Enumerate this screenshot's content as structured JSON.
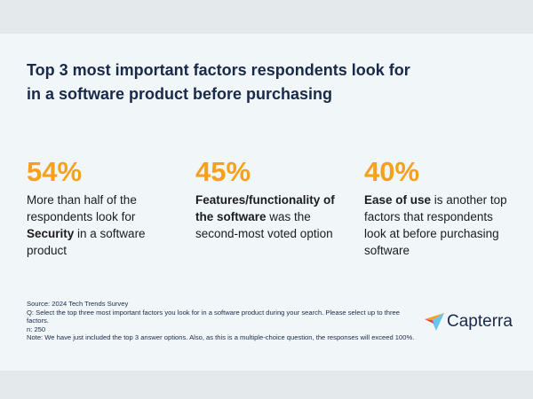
{
  "header": {
    "title": [
      "Top 3 most important factors respondents look for",
      "in a software product before purchasing"
    ]
  },
  "stats": [
    {
      "figure": "54%",
      "text": [
        {
          "t": "More than half of the respondents look for ",
          "bold": false
        },
        {
          "t": "Security",
          "bold": true
        },
        {
          "t": " in a software product",
          "bold": false
        }
      ]
    },
    {
      "figure": "45%",
      "text": [
        {
          "t": "Features/functionality of the software",
          "bold": true
        },
        {
          "t": " was the second-most voted option",
          "bold": false
        }
      ]
    },
    {
      "figure": "40%",
      "text": [
        {
          "t": "Ease of use",
          "bold": true
        },
        {
          "t": " is another top factors that respondents look at before purchasing software",
          "bold": false
        }
      ]
    }
  ],
  "footnote": [
    "Source: 2024 Tech Trends Survey",
    "Q: Select the top three most important factors you look for in a software product during your search. Please select up to three factors.",
    "n: 250",
    "Note: We have just included the top 3 answer options. Also, as this is a multiple-choice question, the responses will exceed 100%."
  ],
  "logo": {
    "text": "Capterra"
  }
}
